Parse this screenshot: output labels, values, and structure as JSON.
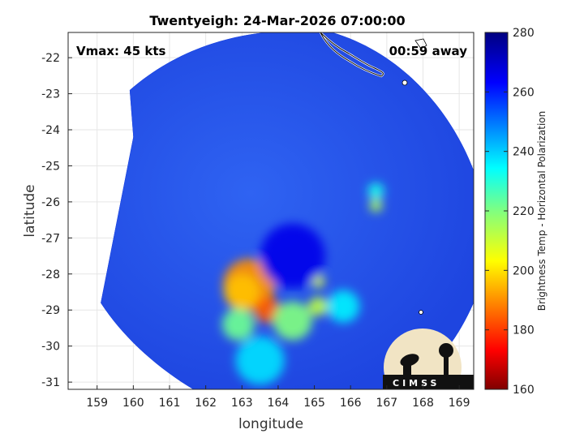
{
  "chart_data": {
    "type": "heatmap",
    "title": "Twentyeigh: 24-Mar-2026 07:00:00",
    "xlabel": "longitude",
    "ylabel": "latitude",
    "xlim": [
      158.2,
      169.4
    ],
    "ylim": [
      -31.2,
      -21.3
    ],
    "xticks": [
      159,
      160,
      161,
      162,
      163,
      164,
      165,
      166,
      167,
      168,
      169
    ],
    "yticks": [
      -22,
      -23,
      -24,
      -25,
      -26,
      -27,
      -28,
      -29,
      -30,
      -31
    ],
    "grid": true,
    "annotations": {
      "vmax": "Vmax: 45 kts",
      "time_away": "00:59 away"
    },
    "colorbar": {
      "label": "Brightness Temp - Horizontal Polarization",
      "range": [
        160,
        280
      ],
      "ticks": [
        280,
        260,
        240,
        220,
        200,
        180,
        160
      ],
      "colormap": "jet"
    },
    "swath": {
      "background_value": 262,
      "features": [
        {
          "lon": 163.2,
          "lat": -28.3,
          "value": 190
        },
        {
          "lon": 163.0,
          "lat": -28.5,
          "value": 196
        },
        {
          "lon": 163.7,
          "lat": -29.0,
          "value": 184
        },
        {
          "lon": 162.9,
          "lat": -29.4,
          "value": 222
        },
        {
          "lon": 164.4,
          "lat": -29.3,
          "value": 220
        },
        {
          "lon": 165.1,
          "lat": -28.9,
          "value": 212
        },
        {
          "lon": 165.1,
          "lat": -28.2,
          "value": 208
        },
        {
          "lon": 166.7,
          "lat": -26.1,
          "value": 214
        },
        {
          "lon": 166.7,
          "lat": -25.7,
          "value": 232
        },
        {
          "lon": 163.5,
          "lat": -30.4,
          "value": 238
        },
        {
          "lon": 165.8,
          "lat": -28.9,
          "value": 236
        },
        {
          "lon": 164.4,
          "lat": -27.5,
          "value": 266
        }
      ]
    }
  },
  "logo": {
    "text": "CIMSS"
  }
}
